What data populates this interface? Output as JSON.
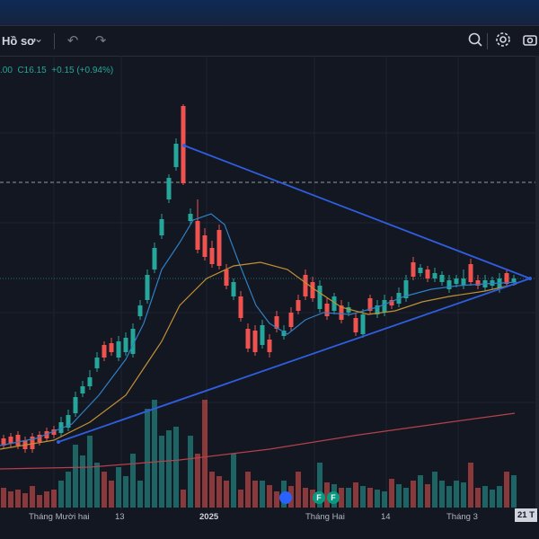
{
  "toolbar": {
    "profile_label": "Hồ sơ",
    "chevron_icon": "chevron-down-icon",
    "undo_icon": "undo-icon",
    "redo_icon": "redo-icon",
    "search_icon": "zoom-search-icon",
    "settings_icon": "gear-icon",
    "camera_icon": "camera-icon"
  },
  "legend": {
    "text": ".00  C16.15  +0.15 (+0.94%)"
  },
  "colors": {
    "up": "#26a69a",
    "down": "#ef5350",
    "ma_fast": "#2f7fc4",
    "ma_slow": "#c19035",
    "ma_long": "#b5414a",
    "trendline": "#2f5fe0"
  },
  "x_axis": {
    "labels": [
      "Tháng Mười hai",
      "13",
      "2025",
      "Tháng Hai",
      "14",
      "Tháng 3"
    ],
    "current_tag": "21 T"
  },
  "event_badges": [
    {
      "icon": "dividend-icon",
      "label": ""
    },
    {
      "icon": "financials-icon",
      "label": "F"
    },
    {
      "icon": "financials-icon",
      "label": "F"
    }
  ]
}
